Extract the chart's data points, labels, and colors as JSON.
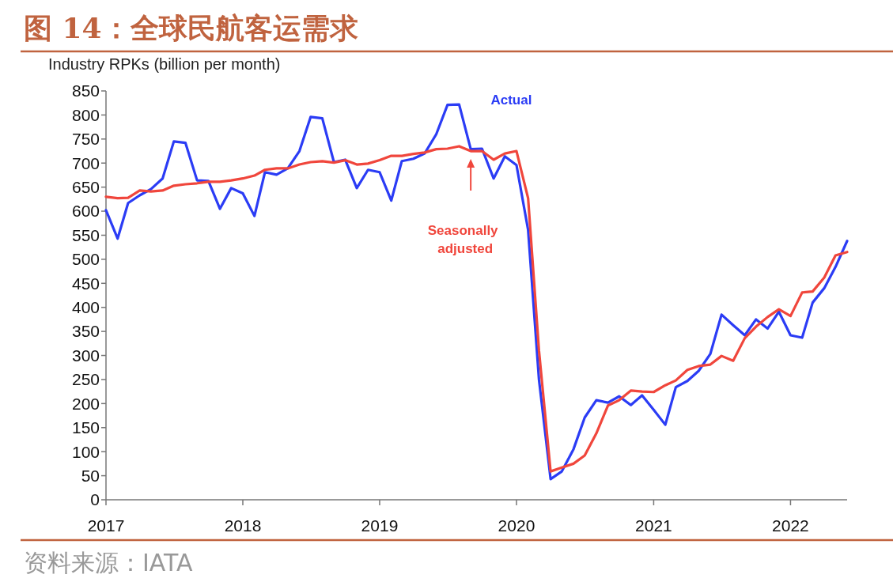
{
  "chart_data": {
    "type": "line",
    "title": "图 14：全球民航客运需求",
    "ylabel": "Industry RPKs (billion per month)",
    "x": [
      "2017-01",
      "2017-02",
      "2017-03",
      "2017-04",
      "2017-05",
      "2017-06",
      "2017-07",
      "2017-08",
      "2017-09",
      "2017-10",
      "2017-11",
      "2017-12",
      "2018-01",
      "2018-02",
      "2018-03",
      "2018-04",
      "2018-05",
      "2018-06",
      "2018-07",
      "2018-08",
      "2018-09",
      "2018-10",
      "2018-11",
      "2018-12",
      "2019-01",
      "2019-02",
      "2019-03",
      "2019-04",
      "2019-05",
      "2019-06",
      "2019-07",
      "2019-08",
      "2019-09",
      "2019-10",
      "2019-11",
      "2019-12",
      "2020-01",
      "2020-02",
      "2020-03",
      "2020-04",
      "2020-05",
      "2020-06",
      "2020-07",
      "2020-08",
      "2020-09",
      "2020-10",
      "2020-11",
      "2020-12",
      "2021-01",
      "2021-02",
      "2021-03",
      "2021-04",
      "2021-05",
      "2021-06",
      "2021-07",
      "2021-08",
      "2021-09",
      "2021-10",
      "2021-11",
      "2021-12",
      "2022-01",
      "2022-02",
      "2022-03",
      "2022-04",
      "2022-05",
      "2022-06"
    ],
    "series": [
      {
        "name": "Actual",
        "color": "#2b3cf5",
        "values": [
          602,
          543,
          617,
          633,
          646,
          668,
          745,
          742,
          664,
          663,
          605,
          648,
          637,
          590,
          681,
          676,
          689,
          725,
          796,
          793,
          702,
          707,
          648,
          686,
          681,
          622,
          704,
          709,
          720,
          760,
          821,
          822,
          729,
          730,
          668,
          714,
          696,
          561,
          250,
          43,
          59,
          105,
          171,
          207,
          202,
          215,
          197,
          217,
          187,
          156,
          234,
          247,
          268,
          303,
          385,
          363,
          342,
          375,
          356,
          391,
          342,
          337,
          410,
          440,
          484,
          538
        ]
      },
      {
        "name": "Seasonally adjusted",
        "color": "#f0463c",
        "values": [
          630,
          627,
          628,
          643,
          641,
          643,
          653,
          656,
          658,
          661,
          661,
          664,
          668,
          674,
          686,
          689,
          689,
          697,
          702,
          704,
          701,
          706,
          697,
          699,
          706,
          715,
          715,
          719,
          722,
          729,
          730,
          735,
          725,
          725,
          707,
          720,
          725,
          627,
          310,
          59,
          67,
          75,
          92,
          138,
          196,
          207,
          227,
          225,
          224,
          238,
          248,
          270,
          278,
          281,
          299,
          289,
          336,
          360,
          380,
          396,
          382,
          431,
          433,
          462,
          508,
          515
        ]
      }
    ],
    "xlim": [
      "2017-01",
      "2022-06"
    ],
    "xticks": [
      {
        "value": "2017",
        "label": "2017"
      },
      {
        "value": "2018",
        "label": "2018"
      },
      {
        "value": "2019",
        "label": "2019"
      },
      {
        "value": "2020",
        "label": "2020"
      },
      {
        "value": "2021",
        "label": "2021"
      },
      {
        "value": "2022",
        "label": "2022"
      }
    ],
    "ylim": [
      0,
      850
    ],
    "yticks": [
      0,
      50,
      100,
      150,
      200,
      250,
      300,
      350,
      400,
      450,
      500,
      550,
      600,
      650,
      700,
      750,
      800,
      850
    ],
    "line_style": "solid",
    "marker": "none",
    "annotations": [
      "资料来源：IATA"
    ]
  }
}
